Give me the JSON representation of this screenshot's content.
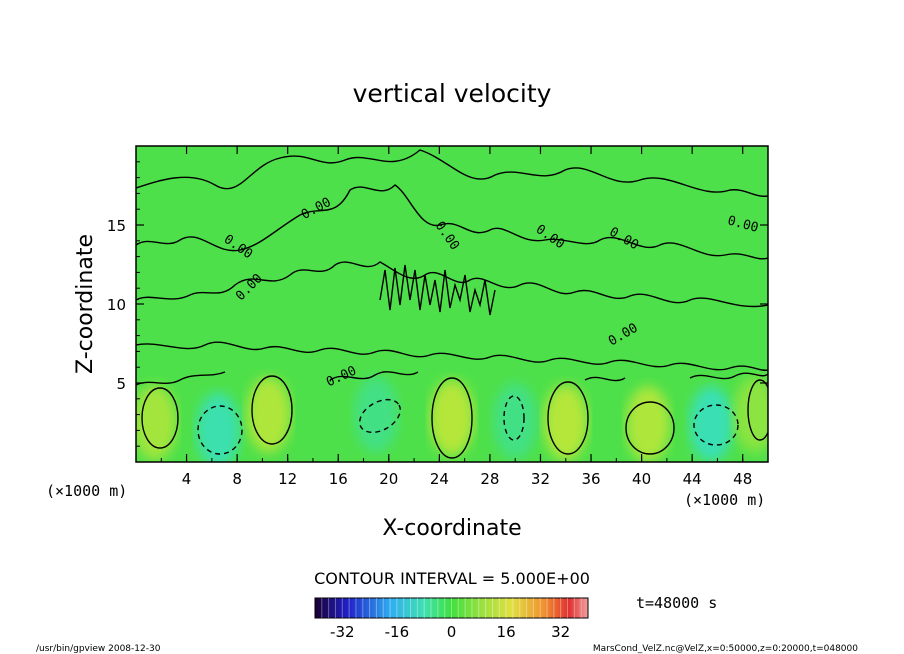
{
  "chart_data": {
    "type": "contour",
    "title": "vertical velocity",
    "xlabel": "X-coordinate",
    "ylabel": "Z-coordinate",
    "x_units": "(×1000 m)",
    "y_units": "(×1000 m)",
    "x_ticks": [
      "4",
      "8",
      "12",
      "16",
      "20",
      "24",
      "28",
      "32",
      "36",
      "40",
      "44",
      "48"
    ],
    "y_ticks": [
      "5",
      "10",
      "15"
    ],
    "xlim": [
      0,
      50
    ],
    "ylim": [
      0,
      20
    ],
    "contour_labels": [
      "0.00",
      "0.00",
      "0.00",
      "0.00",
      "0.00",
      "0.00",
      "0.00",
      "0.00",
      "0.00"
    ],
    "contour_interval": "CONTOUR INTERVAL = 5.000E+00",
    "time_label": "t=48000 s",
    "colorbar": {
      "ticks": [
        "-32",
        "-16",
        "0",
        "16",
        "32"
      ],
      "range": [
        -40,
        40
      ]
    },
    "cells": [
      {
        "x": 1.5,
        "z": 2.5,
        "sign": 1,
        "strength": 0.7
      },
      {
        "x": 6.5,
        "z": 2.0,
        "sign": -1,
        "strength": 0.85
      },
      {
        "x": 10.5,
        "z": 3.0,
        "sign": 1,
        "strength": 0.8
      },
      {
        "x": 19.0,
        "z": 3.0,
        "sign": -1,
        "strength": 0.5
      },
      {
        "x": 25.0,
        "z": 2.8,
        "sign": 1,
        "strength": 0.85
      },
      {
        "x": 30.0,
        "z": 2.6,
        "sign": -1,
        "strength": 0.5
      },
      {
        "x": 34.0,
        "z": 2.5,
        "sign": 1,
        "strength": 0.85
      },
      {
        "x": 40.5,
        "z": 2.4,
        "sign": 1,
        "strength": 0.8
      },
      {
        "x": 45.5,
        "z": 2.4,
        "sign": -1,
        "strength": 0.9
      },
      {
        "x": 49.0,
        "z": 3.0,
        "sign": 1,
        "strength": 0.5
      }
    ]
  },
  "footer": {
    "left": "/usr/bin/gpview   2008-12-30",
    "right": "MarsCond_VelZ.nc@VelZ,x=0:50000,z=0:20000,t=048000"
  }
}
